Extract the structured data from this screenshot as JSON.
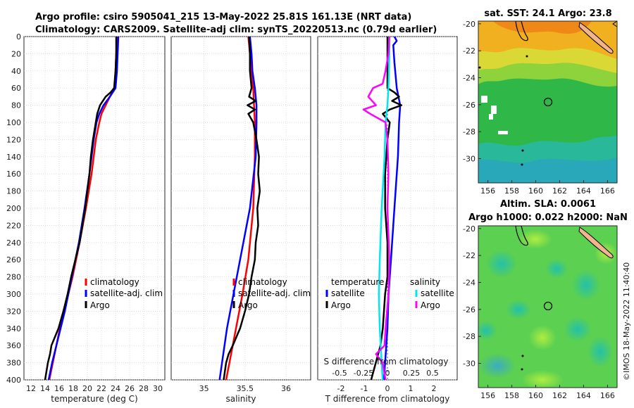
{
  "title": {
    "line1": "Argo profile: csiro 5905041_215 13-May-2022 25.81S 161.13E (NRT data)",
    "line2": "Climatology: CARS2009. Satellite-adj clim: synTS_20220513.nc (0.79d earlier)"
  },
  "copyright": "©IMOS 18-May-2022 11:40:40",
  "colors": {
    "climatology": "#ff0000",
    "satellite": "#0000ff",
    "argo": "#000000",
    "salinity_sat": "#00e5ee",
    "salinity_argo": "#ff00ff",
    "land": "#f2b48c"
  },
  "depth_axis": {
    "ylim": [
      0,
      400
    ],
    "ticks": [
      "0",
      "20",
      "40",
      "60",
      "80",
      "100",
      "120",
      "140",
      "160",
      "180",
      "200",
      "220",
      "240",
      "260",
      "280",
      "300",
      "320",
      "340",
      "360",
      "380",
      "400"
    ]
  },
  "chart_data": [
    {
      "type": "line",
      "name": "temperature profile",
      "xlabel": "temperature (deg C)",
      "ylabel": "",
      "xlim": [
        11,
        31
      ],
      "ylim": [
        0,
        400
      ],
      "xticks": [
        "12",
        "14",
        "16",
        "18",
        "20",
        "22",
        "24",
        "26",
        "28",
        "30"
      ],
      "legend": [
        "climatology",
        "satellite-adj. clim",
        "Argo"
      ],
      "series": [
        {
          "name": "climatology",
          "color": "#ff0000",
          "depth": [
            0,
            20,
            40,
            60,
            65,
            70,
            80,
            90,
            100,
            120,
            140,
            160,
            200,
            240,
            280,
            300,
            320,
            340,
            360,
            380,
            400
          ],
          "values": [
            24.2,
            24.1,
            24.0,
            23.9,
            23.5,
            23.2,
            22.6,
            22.0,
            21.7,
            21.2,
            20.9,
            20.6,
            19.8,
            18.9,
            17.9,
            17.3,
            16.7,
            16.1,
            15.6,
            15.1,
            14.6
          ]
        },
        {
          "name": "satellite-adj. clim",
          "color": "#0000ff",
          "depth": [
            0,
            20,
            40,
            60,
            65,
            70,
            80,
            90,
            100,
            120,
            140,
            160,
            200,
            240,
            280,
            300,
            320,
            340,
            360,
            380,
            400
          ],
          "values": [
            24.4,
            24.3,
            24.2,
            24.0,
            23.6,
            23.2,
            22.3,
            21.7,
            21.3,
            20.9,
            20.6,
            20.3,
            19.6,
            18.8,
            17.8,
            17.3,
            16.8,
            16.2,
            15.6,
            15.0,
            14.5
          ]
        },
        {
          "name": "Argo",
          "color": "#000000",
          "depth": [
            0,
            20,
            40,
            60,
            65,
            70,
            80,
            90,
            100,
            120,
            140,
            160,
            200,
            240,
            280,
            300,
            320,
            340,
            350,
            360,
            370,
            380,
            400
          ],
          "values": [
            24.1,
            24.1,
            24.0,
            23.8,
            23.3,
            22.6,
            21.8,
            21.4,
            21.2,
            20.8,
            20.5,
            20.3,
            19.7,
            18.9,
            17.7,
            17.2,
            16.6,
            15.9,
            15.4,
            14.9,
            14.7,
            14.4,
            14.0
          ]
        }
      ]
    },
    {
      "type": "line",
      "name": "salinity profile",
      "xlabel": "salinity",
      "ylabel": "",
      "xlim": [
        34.6,
        36.3
      ],
      "ylim": [
        0,
        400
      ],
      "xticks": [
        "35",
        "35.5",
        "36"
      ],
      "legend": [
        "climatology",
        "satellite-adj. clim",
        "Argo"
      ],
      "series": [
        {
          "name": "climatology",
          "color": "#ff0000",
          "depth": [
            0,
            20,
            40,
            60,
            80,
            100,
            140,
            200,
            260,
            300,
            340,
            380,
            400
          ],
          "values": [
            35.54,
            35.56,
            35.58,
            35.6,
            35.61,
            35.62,
            35.62,
            35.6,
            35.54,
            35.47,
            35.39,
            35.31,
            35.27
          ]
        },
        {
          "name": "satellite-adj. clim",
          "color": "#0000ff",
          "depth": [
            0,
            20,
            40,
            60,
            80,
            100,
            140,
            200,
            260,
            300,
            340,
            380,
            400
          ],
          "values": [
            35.56,
            35.58,
            35.59,
            35.62,
            35.64,
            35.64,
            35.63,
            35.56,
            35.44,
            35.36,
            35.28,
            35.22,
            35.19
          ]
        },
        {
          "name": "Argo",
          "color": "#000000",
          "depth": [
            0,
            20,
            40,
            60,
            70,
            75,
            80,
            85,
            90,
            100,
            120,
            140,
            160,
            180,
            200,
            220,
            240,
            260,
            280,
            300,
            320,
            340,
            360,
            370,
            380,
            400
          ],
          "values": [
            35.55,
            35.56,
            35.56,
            35.58,
            35.55,
            35.63,
            35.53,
            35.62,
            35.54,
            35.6,
            35.64,
            35.67,
            35.66,
            35.68,
            35.65,
            35.66,
            35.63,
            35.62,
            35.58,
            35.55,
            35.5,
            35.44,
            35.35,
            35.3,
            35.27,
            35.24
          ]
        }
      ]
    },
    {
      "type": "line",
      "name": "difference from climatology",
      "xlabel": "T difference from climatology",
      "top_label": "S difference from climatology",
      "xlim": [
        -3,
        3
      ],
      "ylim": [
        0,
        400
      ],
      "xticks": [
        "-2",
        "-1",
        "0",
        "1",
        "2"
      ],
      "top_ticks": [
        "-0.5",
        "-0.25",
        "0",
        "0.25",
        "0.5"
      ],
      "legend_titles": [
        "temperature",
        "salinity"
      ],
      "legend": [
        "satellite",
        "Argo",
        "satellite",
        "Argo"
      ],
      "series": [
        {
          "name": "temperature satellite",
          "color": "#0000ff",
          "depth": [
            0,
            5,
            10,
            30,
            60,
            80,
            100,
            140,
            200,
            260,
            300,
            340,
            380,
            400
          ],
          "values": [
            0.3,
            0.4,
            0.25,
            0.3,
            0.4,
            0.55,
            0.5,
            0.45,
            0.3,
            0.15,
            0.05,
            0.0,
            -0.1,
            -0.15
          ]
        },
        {
          "name": "temperature Argo",
          "color": "#000000",
          "depth": [
            0,
            60,
            65,
            70,
            75,
            80,
            85,
            90,
            100,
            120,
            160,
            200,
            240,
            280,
            300,
            340,
            360,
            370,
            380,
            400
          ],
          "values": [
            0.0,
            0.0,
            0.3,
            0.5,
            0.2,
            0.6,
            0.1,
            -0.2,
            0.1,
            0.0,
            -0.1,
            -0.1,
            0.0,
            0.0,
            -0.1,
            -0.2,
            -0.3,
            -0.4,
            -0.5,
            -0.7
          ]
        },
        {
          "name": "salinity satellite",
          "color": "#00e5ee",
          "depth": [
            0,
            20,
            60,
            80,
            100,
            140,
            200,
            260,
            300,
            340,
            380,
            400
          ],
          "values": [
            0.02,
            0.02,
            0.01,
            0.0,
            -0.02,
            -0.03,
            -0.06,
            -0.08,
            -0.09,
            -0.08,
            -0.06,
            -0.05
          ]
        },
        {
          "name": "salinity Argo",
          "color": "#ff00ff",
          "depth": [
            0,
            20,
            40,
            55,
            60,
            70,
            80,
            85,
            90,
            100,
            120,
            160,
            200,
            260,
            300,
            340,
            360,
            370,
            380,
            400
          ],
          "values": [
            0.02,
            0.01,
            -0.02,
            -0.05,
            -0.15,
            -0.2,
            -0.12,
            -0.25,
            -0.18,
            -0.02,
            0.0,
            0.01,
            0.0,
            0.02,
            0.01,
            -0.02,
            -0.03,
            -0.12,
            -0.05,
            -0.02
          ]
        }
      ]
    },
    {
      "type": "heatmap",
      "name": "satellite SST map",
      "title": "sat. SST: 24.1 Argo: 23.8",
      "xlim": [
        155.2,
        166.8
      ],
      "ylim": [
        -31.8,
        -19.8
      ],
      "xticks": [
        "156",
        "158",
        "160",
        "162",
        "164",
        "166"
      ],
      "yticks": [
        "-20",
        "-22",
        "-24",
        "-26",
        "-28",
        "-30"
      ],
      "marker": {
        "lon": 161.13,
        "lat": -25.81
      }
    },
    {
      "type": "heatmap",
      "name": "altimetry SLA map",
      "title": "Altim. SLA: 0.0061",
      "subtitle": "Argo h1000: 0.022 h2000: NaN",
      "xlim": [
        155.2,
        166.8
      ],
      "ylim": [
        -31.8,
        -19.8
      ],
      "xticks": [
        "156",
        "158",
        "160",
        "162",
        "164",
        "166"
      ],
      "yticks": [
        "-20",
        "-22",
        "-24",
        "-26",
        "-28",
        "-30"
      ],
      "marker": {
        "lon": 161.13,
        "lat": -25.81
      }
    }
  ]
}
